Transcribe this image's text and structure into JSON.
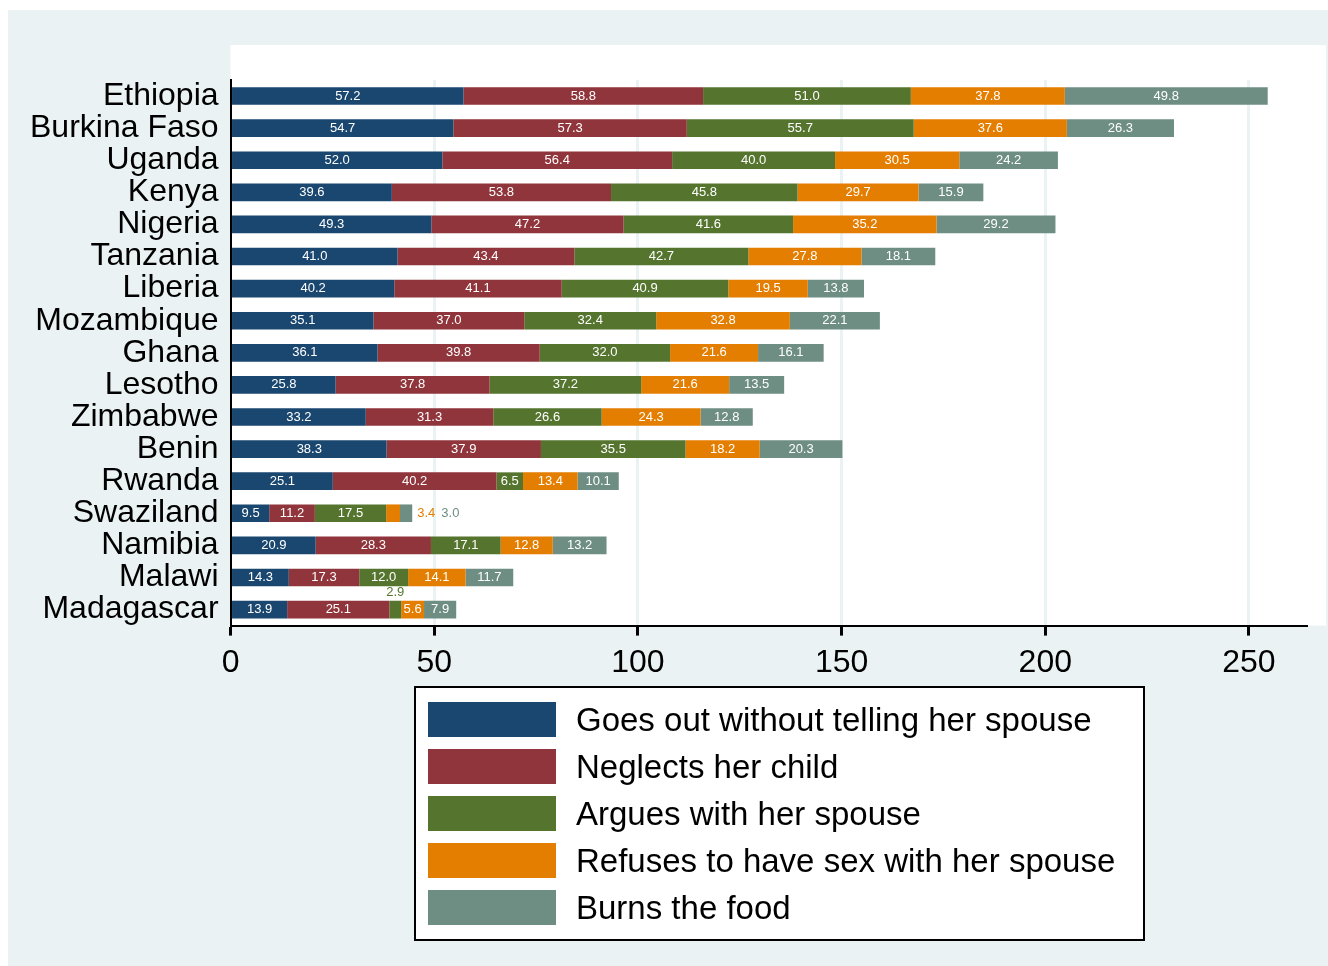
{
  "chart_data": {
    "type": "bar",
    "orientation": "horizontal",
    "stacked": true,
    "grid": "x",
    "legend": "bottom",
    "categories": [
      "Ethiopia",
      "Burkina Faso",
      "Uganda",
      "Kenya",
      "Nigeria",
      "Tanzania",
      "Liberia",
      "Mozambique",
      "Ghana",
      "Lesotho",
      "Zimbabwe",
      "Benin",
      "Rwanda",
      "Swaziland",
      "Namibia",
      "Malawi",
      "Madagascar"
    ],
    "xlim": [
      0,
      264
    ],
    "xticks": [
      0,
      50,
      100,
      150,
      200,
      250
    ],
    "series": [
      {
        "name": "Goes out without telling her spouse",
        "color": "#1a476f",
        "values": [
          57.2,
          54.7,
          52.0,
          39.6,
          49.3,
          41.0,
          40.2,
          35.1,
          36.1,
          25.8,
          33.2,
          38.3,
          25.1,
          9.5,
          20.9,
          14.3,
          13.9
        ],
        "value_labels": [
          "57.2",
          "54.7",
          "52.0",
          "39.6",
          "49.3",
          "41.0",
          "40.2",
          "35.1",
          "36.1",
          "25.8",
          "33.2",
          "38.3",
          "25.1",
          "9.5",
          "20.9",
          "14.3",
          "13.9"
        ]
      },
      {
        "name": "Neglects her child",
        "color": "#90353b",
        "values": [
          58.8,
          57.3,
          56.4,
          53.8,
          47.2,
          43.4,
          41.1,
          37.0,
          39.8,
          37.8,
          31.3,
          37.9,
          40.2,
          11.2,
          28.3,
          17.3,
          25.1
        ],
        "value_labels": [
          "58.8",
          "57.3",
          "56.4",
          "53.8",
          "47.2",
          "43.4",
          "41.1",
          "37.0",
          "39.8",
          "37.8",
          "31.3",
          "37.9",
          "40.2",
          "11.2",
          "28.3",
          "17.3",
          "25.1"
        ]
      },
      {
        "name": "Argues with her spouse",
        "color": "#55752f",
        "values": [
          51.0,
          55.7,
          40.0,
          45.8,
          41.6,
          42.7,
          40.9,
          32.4,
          32.0,
          37.2,
          26.6,
          35.5,
          6.5,
          17.5,
          17.1,
          12.0,
          2.9
        ],
        "value_labels": [
          "51.0",
          "55.7",
          "40.0",
          "45.8",
          "41.6",
          "42.7",
          "40.9",
          "32.4",
          "32.0",
          "37.2",
          "26.6",
          "35.5",
          "6.5",
          "17.5",
          "17.1",
          "12.0",
          "2.9"
        ]
      },
      {
        "name": "Refuses to have sex with her spouse",
        "color": "#e37e00",
        "values": [
          37.8,
          37.6,
          30.5,
          29.7,
          35.2,
          27.8,
          19.5,
          32.8,
          21.6,
          21.6,
          24.3,
          18.2,
          13.4,
          3.4,
          12.8,
          14.1,
          5.6
        ],
        "value_labels": [
          "37.8",
          "37.6",
          "30.5",
          "29.7",
          "35.2",
          "27.8",
          "19.5",
          "32.8",
          "21.6",
          "21.6",
          "24.3",
          "18.2",
          "13.4",
          "3.4",
          "12.8",
          "14.1",
          "5.6"
        ]
      },
      {
        "name": "Burns the food",
        "color": "#6e8e84",
        "values": [
          49.8,
          26.3,
          24.2,
          15.9,
          29.2,
          18.1,
          13.8,
          22.1,
          16.1,
          13.5,
          12.8,
          20.3,
          10.1,
          3.0,
          13.2,
          11.7,
          7.9
        ],
        "value_labels": [
          "49.8",
          "26.3",
          "24.2",
          "15.9",
          "29.2",
          "18.1",
          "13.8",
          "22.1",
          "16.1",
          "13.5",
          "12.8",
          "20.3",
          "10.1",
          "3.0",
          "13.2",
          "11.7",
          "7.9"
        ]
      }
    ]
  }
}
